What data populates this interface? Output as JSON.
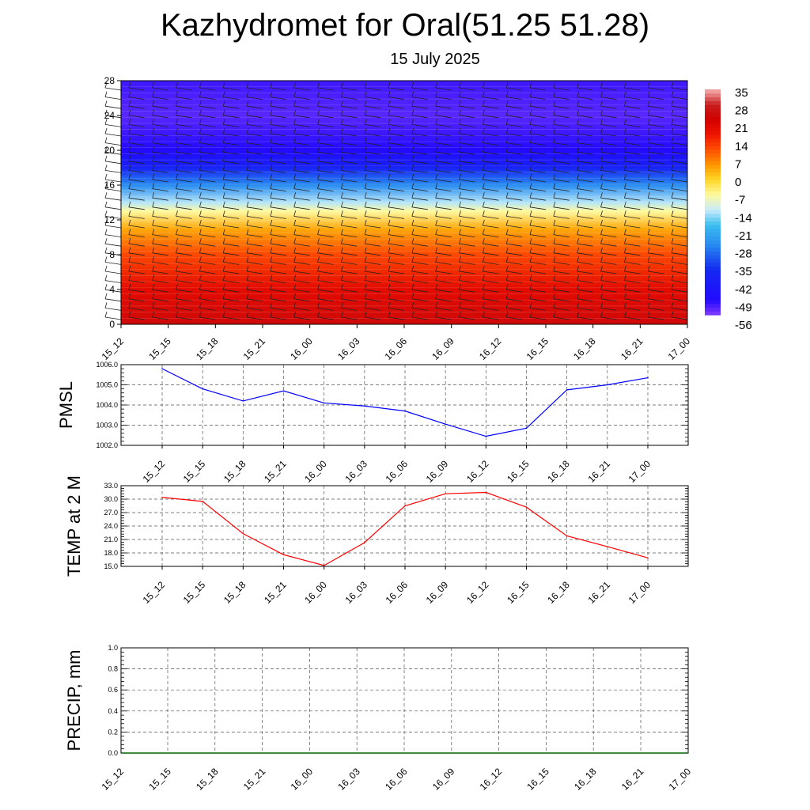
{
  "title": "Kazhydromet for Oral(51.25 51.28)",
  "subtitle": "15 July 2025",
  "time_labels": [
    "15_12",
    "15_15",
    "15_18",
    "15_21",
    "16_00",
    "16_03",
    "16_06",
    "16_09",
    "16_12",
    "16_15",
    "16_18",
    "16_21",
    "17_00"
  ],
  "chart_data": [
    {
      "type": "heatmap",
      "name": "temperature-cross-section",
      "title": "",
      "xlabel": "",
      "ylabel": "",
      "x": [
        "15_12",
        "15_15",
        "15_18",
        "15_21",
        "16_00",
        "16_03",
        "16_06",
        "16_09",
        "16_12",
        "16_15",
        "16_18",
        "16_21",
        "17_00"
      ],
      "ylim": [
        0,
        28
      ],
      "yticks": [
        0,
        4,
        8,
        12,
        16,
        20,
        24,
        28
      ],
      "colorbar_labels": [
        "35",
        "28",
        "21",
        "14",
        "7",
        "0",
        "-7",
        "-14",
        "-21",
        "-28",
        "-35",
        "-42",
        "-49",
        "-56"
      ],
      "colorbar_range": [
        -63,
        42
      ],
      "profile": [
        {
          "y": 0,
          "value": 30
        },
        {
          "y": 4,
          "value": 24
        },
        {
          "y": 8,
          "value": 15
        },
        {
          "y": 11,
          "value": 5
        },
        {
          "y": 13,
          "value": -7
        },
        {
          "y": 14,
          "value": -15
        },
        {
          "y": 16,
          "value": -30
        },
        {
          "y": 18,
          "value": -45
        },
        {
          "y": 20,
          "value": -56
        },
        {
          "y": 24,
          "value": -60
        },
        {
          "y": 28,
          "value": -58
        }
      ],
      "overlay": "wind barbs"
    },
    {
      "type": "line",
      "name": "pmsl",
      "ylabel": "PMSL",
      "x": [
        "15_12",
        "15_15",
        "15_18",
        "15_21",
        "16_00",
        "16_03",
        "16_06",
        "16_09",
        "16_12",
        "16_15",
        "16_18",
        "16_21",
        "17_00"
      ],
      "series": [
        {
          "values": [
            1005.8,
            1004.8,
            1004.2,
            1004.7,
            1004.1,
            1003.95,
            1003.7,
            1003.05,
            1002.45,
            1002.85,
            1004.75,
            1005.0,
            1005.35
          ]
        }
      ],
      "ylim": [
        1002.0,
        1006.0
      ],
      "yticks": [
        "1002.0",
        "1003.0",
        "1004.0",
        "1005.0",
        "1006.0"
      ],
      "color": "#0000ff",
      "grid": true
    },
    {
      "type": "line",
      "name": "temp-2m",
      "ylabel": "TEMP at 2 M",
      "x": [
        "15_12",
        "15_15",
        "15_18",
        "15_21",
        "16_00",
        "16_03",
        "16_06",
        "16_09",
        "16_12",
        "16_15",
        "16_18",
        "16_21",
        "17_00"
      ],
      "series": [
        {
          "values": [
            30.4,
            29.5,
            22.3,
            17.6,
            15.2,
            20.3,
            28.5,
            31.2,
            31.5,
            28.2,
            21.8,
            19.4,
            16.9
          ]
        }
      ],
      "ylim": [
        15.0,
        33.0
      ],
      "yticks": [
        "15.0",
        "18.0",
        "21.0",
        "24.0",
        "27.0",
        "30.0",
        "33.0"
      ],
      "color": "#ff0000",
      "grid": true
    },
    {
      "type": "line",
      "name": "precip",
      "ylabel": "PRECIP, mm",
      "x": [
        "15_12",
        "15_15",
        "15_18",
        "15_21",
        "16_00",
        "16_03",
        "16_06",
        "16_09",
        "16_12",
        "16_15",
        "16_18",
        "16_21",
        "17_00"
      ],
      "series": [
        {
          "values": [
            0,
            0,
            0,
            0,
            0,
            0,
            0,
            0,
            0,
            0,
            0,
            0,
            0
          ]
        }
      ],
      "ylim": [
        0.0,
        1.0
      ],
      "yticks": [
        "0.0",
        "0.2",
        "0.4",
        "0.6",
        "0.8",
        "1.0"
      ],
      "color": "#006400",
      "grid": true
    }
  ]
}
